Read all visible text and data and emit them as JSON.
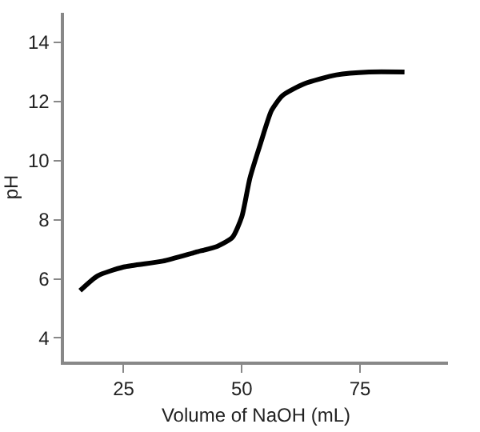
{
  "chart_data": {
    "type": "line",
    "xlabel": "Volume of NaOH (mL)",
    "ylabel": "pH",
    "x": [
      15.8,
      19.5,
      25,
      33.3,
      40.2,
      44.8,
      48,
      50,
      51.7,
      54,
      56.3,
      58.6,
      63.2,
      70,
      76.9,
      84.4
    ],
    "series": [
      {
        "color": "#000000",
        "values": [
          5.6,
          6.1,
          6.4,
          6.6,
          6.9,
          7.1,
          7.4,
          8.1,
          9.4,
          10.6,
          11.7,
          12.2,
          12.6,
          12.9,
          13.0,
          13.0
        ]
      }
    ],
    "xlim": [
      12.4,
      93.6
    ],
    "ylim": [
      3.2,
      15
    ],
    "xticks": [
      25,
      50,
      75
    ],
    "yticks": [
      4,
      6,
      8,
      10,
      12,
      14
    ],
    "grid": false,
    "marker": "none",
    "line_style": "solid"
  }
}
